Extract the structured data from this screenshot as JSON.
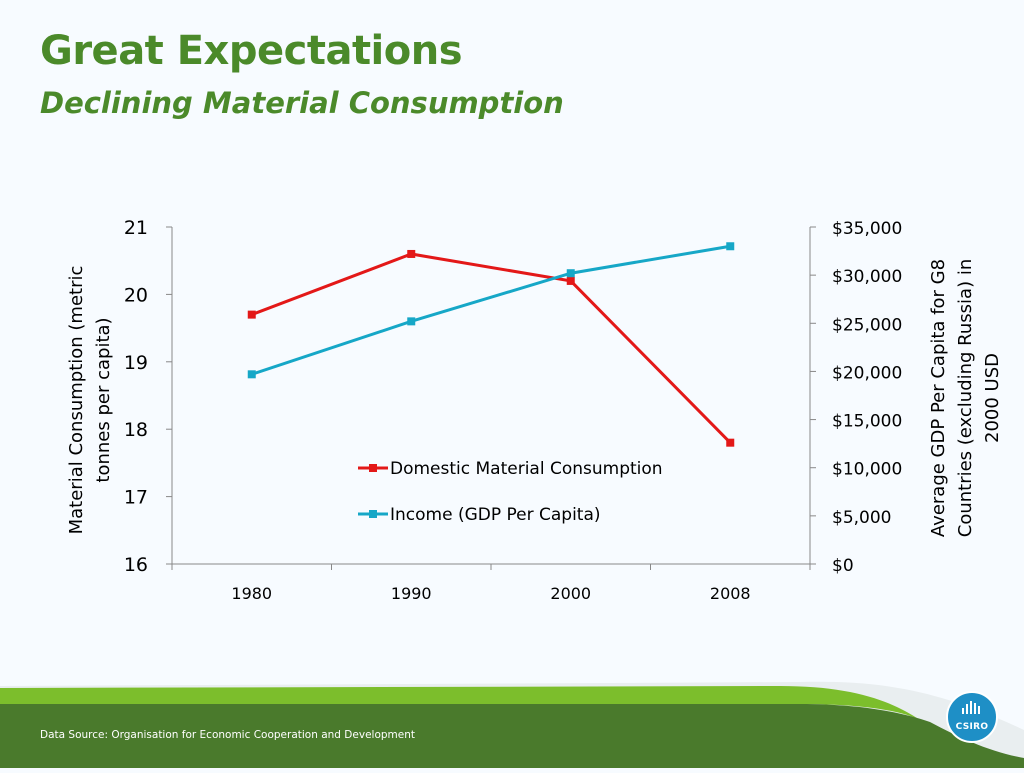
{
  "slide": {
    "title": "Great Expectations",
    "subtitle": "Declining Material Consumption",
    "footer": "Data Source: Organisation for Economic Cooperation and Development",
    "logo_text": "CSIRO"
  },
  "colors": {
    "title": "#4b8a2a",
    "series_dmc": "#e31818",
    "series_income": "#16a7c7",
    "footer_band": "#4a7a2c",
    "footer_swoosh": "#7cbe2c",
    "logo": "#1e8fc6"
  },
  "chart_data": {
    "type": "line",
    "categories": [
      "1980",
      "1990",
      "2000",
      "2008"
    ],
    "y_left": {
      "label": "Material Consumption (metric tonnes per capita)",
      "label_lines": [
        "Material Consumption (metric",
        "tonnes per capita)"
      ],
      "range": [
        16,
        21
      ],
      "ticks": [
        16,
        17,
        18,
        19,
        20,
        21
      ],
      "tick_labels": [
        "16",
        "17",
        "18",
        "19",
        "20",
        "21"
      ]
    },
    "y_right": {
      "label": "Average GDP Per Capita for G8 Countries (excluding Russia) in 2000 USD",
      "label_lines": [
        "Average GDP Per Capita for G8",
        "Countries (excluding Russia) in",
        "2000 USD"
      ],
      "range": [
        0,
        35000
      ],
      "ticks": [
        0,
        5000,
        10000,
        15000,
        20000,
        25000,
        30000,
        35000
      ],
      "tick_labels": [
        "$0",
        "$5,000",
        "$10,000",
        "$15,000",
        "$20,000",
        "$25,000",
        "$30,000",
        "$35,000"
      ]
    },
    "series": [
      {
        "name": "Domestic Material Consumption",
        "axis": "left",
        "values": [
          19.7,
          20.6,
          20.2,
          17.8
        ],
        "color": "#e31818",
        "marker": "square"
      },
      {
        "name": "Income (GDP Per Capita)",
        "axis": "right",
        "values": [
          19700,
          25200,
          30200,
          33000
        ],
        "color": "#16a7c7",
        "marker": "square"
      }
    ],
    "legend_position": "inside-bottom-center",
    "grid": false
  }
}
